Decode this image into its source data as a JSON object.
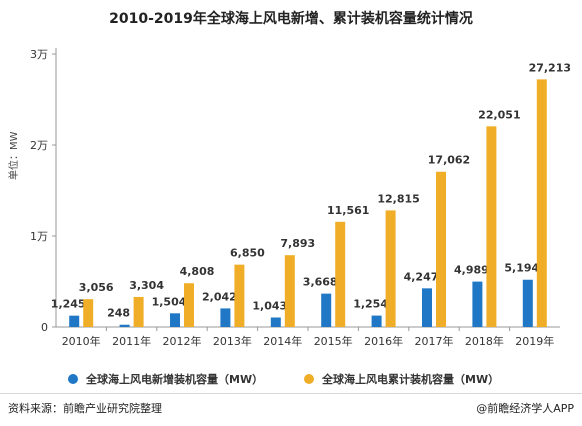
{
  "title": "2010-2019年全球海上风电新增、累计装机容量统计情况",
  "footer_source": "资料来源：前瞻产业研究院整理",
  "footer_brand": "@前瞻经济学人APP",
  "chart_data": {
    "type": "bar",
    "title": "2010-2019年全球海上风电新增、累计装机容量统计情况",
    "ylabel": "单位：MW",
    "ylim": [
      0,
      30000
    ],
    "yticks": [
      0,
      10000,
      20000,
      30000
    ],
    "ytick_labels": [
      "0",
      "1万",
      "2万",
      "3万"
    ],
    "categories": [
      "2010年",
      "2011年",
      "2012年",
      "2013年",
      "2014年",
      "2015年",
      "2016年",
      "2017年",
      "2018年",
      "2019年"
    ],
    "series": [
      {
        "name": "全球海上风电新增装机容量（MW）",
        "color": "#1f77c6",
        "values": [
          1245,
          248,
          1504,
          2042,
          1043,
          3668,
          1254,
          4247,
          4989,
          5194
        ],
        "labels": [
          "1,245",
          "248",
          "1,504",
          "2,042",
          "1,043",
          "3,668",
          "1,254",
          "4,247",
          "4,989",
          "5,194"
        ]
      },
      {
        "name": "全球海上风电累计装机容量（MW）",
        "color": "#f0ae28",
        "values": [
          3056,
          3304,
          4808,
          6850,
          7893,
          11561,
          12815,
          17062,
          22051,
          27213
        ],
        "labels": [
          "3,056",
          "3,304",
          "4,808",
          "6,850",
          "7,893",
          "11,561",
          "12,815",
          "17,062",
          "22,051",
          "27,213"
        ]
      }
    ],
    "grid": false,
    "legend_position": "bottom"
  }
}
